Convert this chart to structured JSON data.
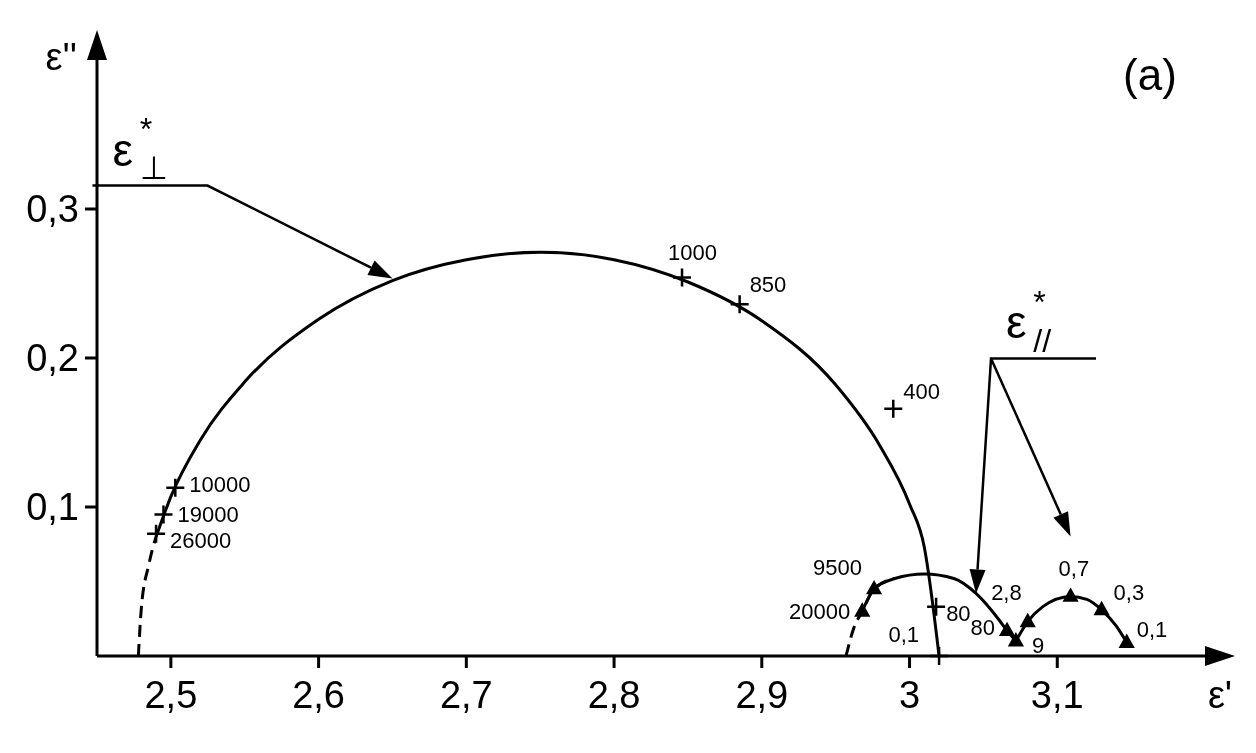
{
  "chart_data": {
    "type": "line",
    "title": "(a)",
    "xlabel": "ε'",
    "ylabel": "ε''",
    "xlim": [
      2.45,
      3.2
    ],
    "ylim": [
      0,
      0.4
    ],
    "xticks": [
      {
        "value": 2.5,
        "label": "2,5"
      },
      {
        "value": 2.6,
        "label": "2,6"
      },
      {
        "value": 2.7,
        "label": "2,7"
      },
      {
        "value": 2.8,
        "label": "2,8"
      },
      {
        "value": 2.9,
        "label": "2,9"
      },
      3,
      {
        "value": 3.1,
        "label": "3,1"
      }
    ],
    "yticks": [
      {
        "value": 0.1,
        "label": "0,1"
      },
      {
        "value": 0.2,
        "label": "0,2"
      },
      {
        "value": 0.3,
        "label": "0,3"
      }
    ],
    "annotations": [
      {
        "text": "10000",
        "x": 2.503,
        "y": 0.113
      },
      {
        "text": "19000",
        "x": 2.495,
        "y": 0.095
      },
      {
        "text": "26000",
        "x": 2.49,
        "y": 0.082
      },
      {
        "text": "1000",
        "x": 2.846,
        "y": 0.254
      },
      {
        "text": "850",
        "x": 2.885,
        "y": 0.236
      },
      {
        "text": "400",
        "x": 2.989,
        "y": 0.166
      },
      {
        "text": "80",
        "x": 3.018,
        "y": 0.033
      },
      {
        "text": "0,1",
        "x": 3.02,
        "y": 0
      },
      {
        "text": "9500",
        "x": 2.976,
        "y": 0.045
      },
      {
        "text": "20000",
        "x": 2.968,
        "y": 0.03
      },
      {
        "text": "80",
        "x": 3.066,
        "y": 0.017
      },
      {
        "text": "9",
        "x": 3.072,
        "y": 0.01
      },
      {
        "text": "2,8",
        "x": 3.08,
        "y": 0.023
      },
      {
        "text": "0,7",
        "x": 3.109,
        "y": 0.04
      },
      {
        "text": "0,3",
        "x": 3.13,
        "y": 0.031
      },
      {
        "text": "0,1",
        "x": 3.147,
        "y": 0.009
      }
    ],
    "series": [
      {
        "name": "ε$^{*}$$_{⊥}$",
        "color": "#000000",
        "line_style": "solid",
        "marker": "none",
        "x": [
          2.49,
          2.5,
          2.52,
          2.55,
          2.6,
          2.65,
          2.7,
          2.75,
          2.8,
          2.85,
          2.9,
          2.95,
          2.98,
          3.0,
          3.01,
          3.02
        ],
        "values": [
          0.08,
          0.107,
          0.145,
          0.184,
          0.226,
          0.252,
          0.266,
          0.271,
          0.266,
          0.251,
          0.225,
          0.182,
          0.141,
          0.102,
          0.073,
          0
        ]
      },
      {
        "color": "#000000",
        "line_style": "dashed",
        "marker": "none",
        "x": [
          2.478,
          2.48,
          2.485,
          2.49
        ],
        "values": [
          0,
          0.032,
          0.061,
          0.08
        ]
      },
      {
        "color": "#000000",
        "line_style": "dashed",
        "marker": "none",
        "x": [
          2.957,
          2.962,
          2.968,
          2.976,
          2.99
        ],
        "values": [
          0,
          0.018,
          0.03,
          0.045,
          0.052
        ]
      },
      {
        "name": "ε$^{*}$$_{//}$",
        "color": "#000000",
        "line_style": "solid",
        "marker": "none",
        "x": [
          2.968,
          2.976,
          2.99,
          3.01,
          3.03,
          3.045,
          3.06,
          3.066,
          3.072
        ],
        "values": [
          0.03,
          0.045,
          0.052,
          0.055,
          0.052,
          0.042,
          0.025,
          0.017,
          0.01
        ]
      },
      {
        "color": "#000000",
        "line_style": "solid",
        "marker": "none",
        "x": [
          3.072,
          3.08,
          3.09,
          3.109,
          3.12,
          3.13,
          3.14,
          3.147
        ],
        "values": [
          0.01,
          0.023,
          0.033,
          0.04,
          0.038,
          0.031,
          0.02,
          0.009
        ]
      },
      {
        "type": "scatter",
        "color": "#000000",
        "marker": "cross",
        "x": [
          2.503,
          2.495,
          2.49,
          2.846,
          2.885,
          2.989,
          3.018,
          3.02
        ],
        "values": [
          0.113,
          0.095,
          0.082,
          0.254,
          0.236,
          0.166,
          0.033,
          0
        ]
      },
      {
        "type": "scatter",
        "color": "#000000",
        "marker": "triangle",
        "x": [
          2.976,
          2.968,
          3.066,
          3.072,
          3.08,
          3.109,
          3.13,
          3.147
        ],
        "values": [
          0.045,
          0.03,
          0.017,
          0.01,
          0.023,
          0.04,
          0.031,
          0.009
        ]
      }
    ]
  }
}
